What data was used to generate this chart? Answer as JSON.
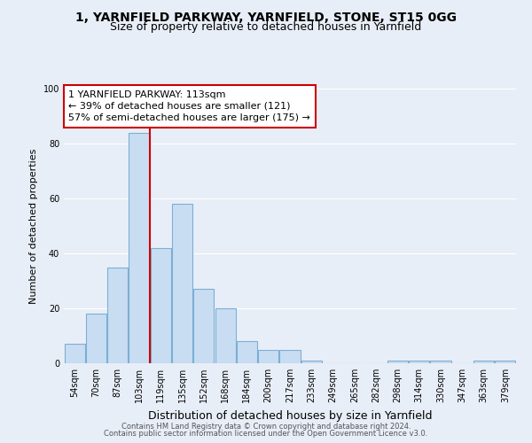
{
  "title": "1, YARNFIELD PARKWAY, YARNFIELD, STONE, ST15 0GG",
  "subtitle": "Size of property relative to detached houses in Yarnfield",
  "xlabel": "Distribution of detached houses by size in Yarnfield",
  "ylabel": "Number of detached properties",
  "bar_labels": [
    "54sqm",
    "70sqm",
    "87sqm",
    "103sqm",
    "119sqm",
    "135sqm",
    "152sqm",
    "168sqm",
    "184sqm",
    "200sqm",
    "217sqm",
    "233sqm",
    "249sqm",
    "265sqm",
    "282sqm",
    "298sqm",
    "314sqm",
    "330sqm",
    "347sqm",
    "363sqm",
    "379sqm"
  ],
  "bar_values": [
    7,
    18,
    35,
    84,
    42,
    58,
    27,
    20,
    8,
    5,
    5,
    1,
    0,
    0,
    0,
    1,
    1,
    1,
    0,
    1,
    1
  ],
  "bar_color": "#c9ddf2",
  "bar_edge_color": "#7bafd4",
  "vline_color": "#cc0000",
  "annotation_title": "1 YARNFIELD PARKWAY: 113sqm",
  "annotation_line1": "← 39% of detached houses are smaller (121)",
  "annotation_line2": "57% of semi-detached houses are larger (175) →",
  "annotation_box_facecolor": "#ffffff",
  "annotation_box_edgecolor": "#cc0000",
  "ylim": [
    0,
    100
  ],
  "yticks": [
    0,
    20,
    40,
    60,
    80,
    100
  ],
  "background_color": "#e8eef7",
  "plot_bg_color": "#e8eef7",
  "footer1": "Contains HM Land Registry data © Crown copyright and database right 2024.",
  "footer2": "Contains public sector information licensed under the Open Government Licence v3.0.",
  "title_fontsize": 10,
  "subtitle_fontsize": 9,
  "ylabel_fontsize": 8,
  "xlabel_fontsize": 9,
  "tick_fontsize": 7,
  "annotation_fontsize": 8,
  "footer_fontsize": 6
}
